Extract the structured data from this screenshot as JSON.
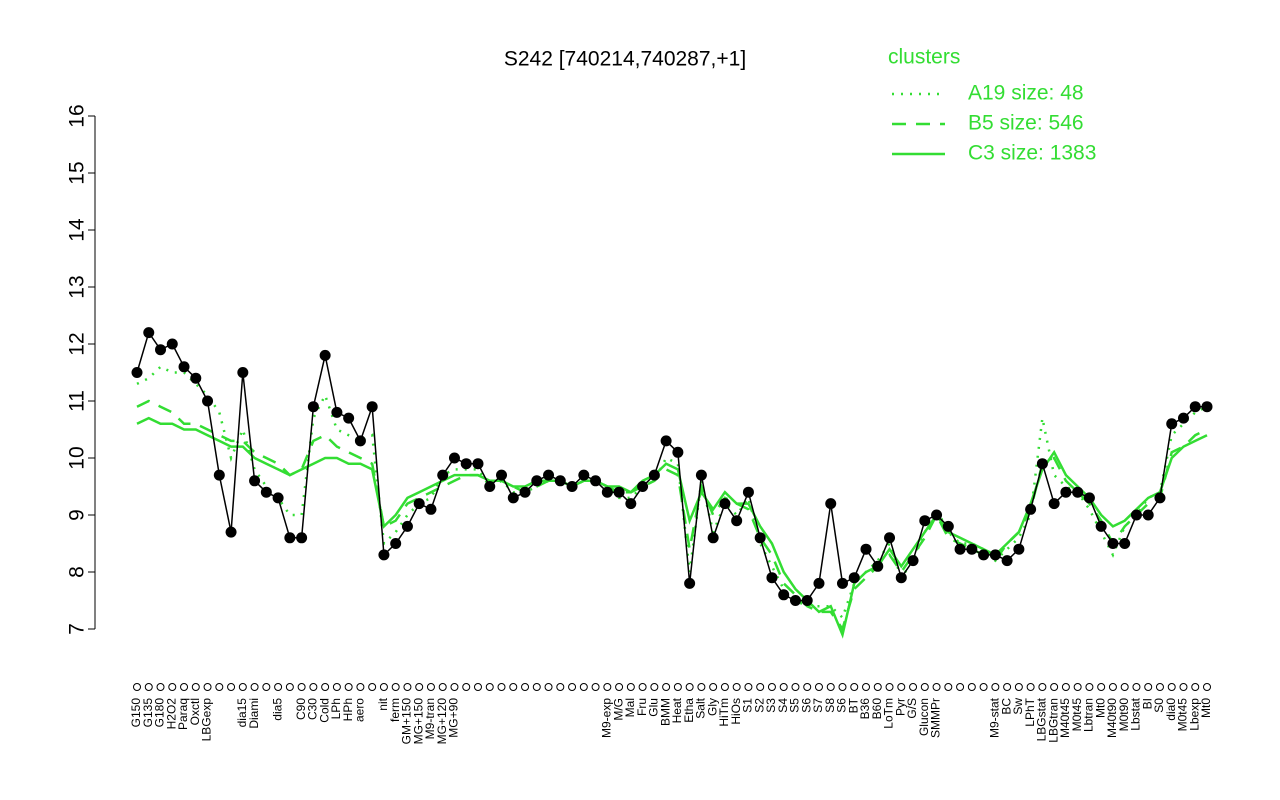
{
  "chart_data": {
    "type": "line",
    "title": "S242 [740214,740287,+1]",
    "ylim": [
      7,
      16
    ],
    "yticks": [
      7,
      8,
      9,
      10,
      11,
      12,
      13,
      14,
      15,
      16
    ],
    "legend_title": "clusters",
    "legend_color": "#33dd33",
    "point_color": "#000000",
    "categories": [
      "G150",
      "G135",
      "G180",
      "H2O2",
      "Paraq",
      "Oxctl",
      "LBGexp",
      null,
      null,
      "dia15",
      "Diami",
      null,
      "dia5",
      null,
      "C90",
      "C30",
      "Cold",
      "LPh",
      "HPh",
      "aero",
      null,
      "nit",
      "ferm",
      "GM+150",
      "MG+150",
      "M9-tran",
      "MG+120",
      "MG+90",
      null,
      null,
      null,
      null,
      null,
      null,
      null,
      null,
      null,
      null,
      null,
      null,
      "M9-exp",
      "M/G",
      "Mal",
      "Fru",
      "Glu",
      "BMM",
      "Heat",
      "Etha",
      "Salt",
      "Gly",
      "HiTm",
      "HiOs",
      "S1",
      "S2",
      "S3",
      "S4",
      "S5",
      "S6",
      "S7",
      "S8",
      "S6",
      "BT",
      "B36",
      "B60",
      "LoTm",
      "Pyr",
      "G/S",
      "Glucon",
      "SMMPr",
      null,
      null,
      null,
      null,
      "M9-stat",
      "BC",
      "Sw",
      "LPhT",
      "LBGstat",
      "LBGtran",
      "M40t45",
      "M0t45",
      "Lbtran",
      "Mt0",
      "M40t90",
      "M0t90",
      "Lbstat",
      "BI",
      "S0",
      "dia0",
      "M0t45",
      "Lbexp",
      "Mt0"
    ],
    "values": [
      11.5,
      12.2,
      11.9,
      12.0,
      11.6,
      11.4,
      11.0,
      9.7,
      8.7,
      11.5,
      9.6,
      9.4,
      9.3,
      8.6,
      8.6,
      10.9,
      11.8,
      10.8,
      10.7,
      10.3,
      10.9,
      8.3,
      8.5,
      8.8,
      9.2,
      9.1,
      9.7,
      10.0,
      9.9,
      9.9,
      9.5,
      9.7,
      9.3,
      9.4,
      9.6,
      9.7,
      9.6,
      9.5,
      9.7,
      9.6,
      9.4,
      9.4,
      9.2,
      9.5,
      9.7,
      10.3,
      10.1,
      7.8,
      9.7,
      8.6,
      9.2,
      8.9,
      9.4,
      8.6,
      7.9,
      7.6,
      7.5,
      7.5,
      7.8,
      9.2,
      7.8,
      7.9,
      8.4,
      8.1,
      8.6,
      7.9,
      8.2,
      8.9,
      9.0,
      8.8,
      8.4,
      8.4,
      8.3,
      8.3,
      8.2,
      8.4,
      9.1,
      9.9,
      9.2,
      9.4,
      9.4,
      9.3,
      8.8,
      8.5,
      8.5,
      9.0,
      9.0,
      9.3,
      10.6,
      10.7,
      10.9,
      10.9
    ],
    "series": [
      {
        "name": "A19 size: 48",
        "color": "#33dd33",
        "style": "dotted",
        "values": [
          11.3,
          11.4,
          11.6,
          11.5,
          11.5,
          11.3,
          11.1,
          10.8,
          10.0,
          10.5,
          9.8,
          9.5,
          9.3,
          9.0,
          9.0,
          10.7,
          11.1,
          10.5,
          10.4,
          10.3,
          10.4,
          8.5,
          8.7,
          9.0,
          9.2,
          9.3,
          9.7,
          9.8,
          9.8,
          9.8,
          9.5,
          9.6,
          9.4,
          9.4,
          9.5,
          9.6,
          9.6,
          9.5,
          9.6,
          9.6,
          9.5,
          9.3,
          9.3,
          9.5,
          9.6,
          10.0,
          9.9,
          8.0,
          9.6,
          8.7,
          9.2,
          9.0,
          9.3,
          8.5,
          8.1,
          7.7,
          7.5,
          7.4,
          7.4,
          7.4,
          7.2,
          7.8,
          8.0,
          8.2,
          8.5,
          7.9,
          8.2,
          8.7,
          9.1,
          8.7,
          8.5,
          8.5,
          8.4,
          8.2,
          8.4,
          8.6,
          9.0,
          10.7,
          9.7,
          9.5,
          9.4,
          9.1,
          8.7,
          8.3,
          8.8,
          9.0,
          9.3,
          9.4,
          10.4,
          10.6,
          10.8,
          10.9
        ]
      },
      {
        "name": "B5 size: 546",
        "color": "#33dd33",
        "style": "dashed",
        "values": [
          10.9,
          11.0,
          10.9,
          10.8,
          10.6,
          10.6,
          10.5,
          10.4,
          10.3,
          10.3,
          10.1,
          10.0,
          9.9,
          9.7,
          9.8,
          10.3,
          10.4,
          10.2,
          10.1,
          10.0,
          9.9,
          8.8,
          8.9,
          9.2,
          9.3,
          9.4,
          9.5,
          9.6,
          9.7,
          9.7,
          9.6,
          9.6,
          9.5,
          9.4,
          9.5,
          9.6,
          9.6,
          9.5,
          9.6,
          9.6,
          9.5,
          9.4,
          9.4,
          9.5,
          9.6,
          9.8,
          9.7,
          8.4,
          9.5,
          9.0,
          9.3,
          9.2,
          9.1,
          8.6,
          8.3,
          7.8,
          7.6,
          7.4,
          7.3,
          7.3,
          7.0,
          7.7,
          7.9,
          8.1,
          8.3,
          8.0,
          8.3,
          8.6,
          9.0,
          8.6,
          8.5,
          8.4,
          8.3,
          8.2,
          8.5,
          8.7,
          9.1,
          9.9,
          10.0,
          9.6,
          9.4,
          9.2,
          8.9,
          8.5,
          8.8,
          9.0,
          9.2,
          9.3,
          10.1,
          10.2,
          10.4,
          10.5
        ]
      },
      {
        "name": "C3 size: 1383",
        "color": "#33dd33",
        "style": "solid",
        "values": [
          10.6,
          10.7,
          10.6,
          10.6,
          10.5,
          10.5,
          10.4,
          10.3,
          10.2,
          10.2,
          10.0,
          9.9,
          9.8,
          9.7,
          9.8,
          9.9,
          10.0,
          10.0,
          9.9,
          9.9,
          9.8,
          8.8,
          9.0,
          9.3,
          9.4,
          9.5,
          9.6,
          9.7,
          9.7,
          9.7,
          9.6,
          9.6,
          9.5,
          9.5,
          9.6,
          9.6,
          9.6,
          9.5,
          9.6,
          9.6,
          9.5,
          9.5,
          9.4,
          9.6,
          9.7,
          9.9,
          9.8,
          8.9,
          9.4,
          9.1,
          9.4,
          9.2,
          9.2,
          8.8,
          8.5,
          8.0,
          7.7,
          7.5,
          7.3,
          7.4,
          6.9,
          7.8,
          8.0,
          8.1,
          8.4,
          8.1,
          8.4,
          8.7,
          9.0,
          8.7,
          8.6,
          8.5,
          8.4,
          8.3,
          8.5,
          8.7,
          9.2,
          9.8,
          10.1,
          9.7,
          9.5,
          9.3,
          9.0,
          8.8,
          8.9,
          9.1,
          9.3,
          9.4,
          10.0,
          10.2,
          10.3,
          10.4
        ]
      }
    ]
  }
}
